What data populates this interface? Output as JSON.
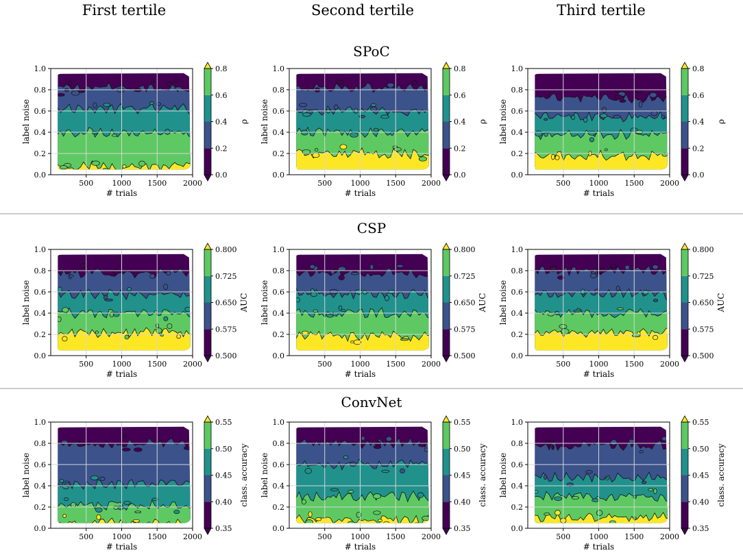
{
  "figure": {
    "column_titles": [
      "First tertile",
      "Second tertile",
      "Third tertile"
    ],
    "row_titles": [
      "SPoC",
      "CSP",
      "ConvNet"
    ]
  },
  "chart_data": [
    {
      "type": "contour",
      "model": "SPoC",
      "xlabel": "# trials",
      "ylabel": "label noise",
      "xlim": [
        0,
        2000
      ],
      "ylim": [
        0.0,
        1.0
      ],
      "xticks": [
        "500",
        "1000",
        "1500",
        "2000"
      ],
      "yticks": [
        "0.0",
        "0.2",
        "0.4",
        "0.6",
        "0.8",
        "1.0"
      ],
      "colorbar": {
        "label": "ρ",
        "range": [
          0.0,
          0.8
        ],
        "levels": [
          0.0,
          0.2,
          0.4,
          0.6,
          0.8
        ],
        "ticks": [
          "0.0",
          "0.2",
          "0.4",
          "0.6",
          "0.8"
        ],
        "extend": "both"
      },
      "panels": [
        {
          "tertile": "First tertile",
          "x_range": [
            100,
            1950
          ],
          "noise_range": [
            0.05,
            0.95
          ],
          "band_boundaries": [
            0.08,
            0.4,
            0.62,
            0.82
          ]
        },
        {
          "tertile": "Second tertile",
          "x_range": [
            100,
            1950
          ],
          "noise_range": [
            0.05,
            0.95
          ],
          "band_boundaries": [
            0.2,
            0.4,
            0.6,
            0.82
          ]
        },
        {
          "tertile": "Third tertile",
          "x_range": [
            100,
            1950
          ],
          "noise_range": [
            0.05,
            0.95
          ],
          "band_boundaries": [
            0.18,
            0.38,
            0.55,
            0.72
          ]
        }
      ]
    },
    {
      "type": "contour",
      "model": "CSP",
      "xlabel": "# trials",
      "ylabel": "label noise",
      "xlim": [
        0,
        2000
      ],
      "ylim": [
        0.0,
        1.0
      ],
      "xticks": [
        "500",
        "1000",
        "1500",
        "2000"
      ],
      "yticks": [
        "0.0",
        "0.2",
        "0.4",
        "0.6",
        "0.8",
        "1.0"
      ],
      "colorbar": {
        "label": "AUC",
        "range": [
          0.5,
          0.8
        ],
        "levels": [
          0.5,
          0.575,
          0.65,
          0.725,
          0.8
        ],
        "ticks": [
          "0.500",
          "0.575",
          "0.650",
          "0.725",
          "0.800"
        ],
        "extend": "both"
      },
      "panels": [
        {
          "tertile": "First tertile",
          "x_range": [
            100,
            1950
          ],
          "noise_range": [
            0.05,
            0.95
          ],
          "band_boundaries": [
            0.22,
            0.4,
            0.58,
            0.78
          ]
        },
        {
          "tertile": "Second tertile",
          "x_range": [
            100,
            1950
          ],
          "noise_range": [
            0.05,
            0.95
          ],
          "band_boundaries": [
            0.18,
            0.4,
            0.58,
            0.78
          ]
        },
        {
          "tertile": "Third tertile",
          "x_range": [
            100,
            1950
          ],
          "noise_range": [
            0.05,
            0.95
          ],
          "band_boundaries": [
            0.22,
            0.4,
            0.58,
            0.8
          ]
        }
      ]
    },
    {
      "type": "contour",
      "model": "ConvNet",
      "xlabel": "# trials",
      "ylabel": "label noise",
      "xlim": [
        0,
        2000
      ],
      "ylim": [
        0.0,
        1.0
      ],
      "xticks": [
        "500",
        "1000",
        "1500",
        "2000"
      ],
      "yticks": [
        "0.0",
        "0.2",
        "0.4",
        "0.6",
        "0.8",
        "1.0"
      ],
      "colorbar": {
        "label": "class. accuracy",
        "range": [
          0.35,
          0.55
        ],
        "levels": [
          0.35,
          0.4,
          0.45,
          0.5,
          0.55
        ],
        "ticks": [
          "0.35",
          "0.40",
          "0.45",
          "0.50",
          "0.55"
        ],
        "extend": "both"
      },
      "panels": [
        {
          "tertile": "First tertile",
          "x_range": [
            100,
            1950
          ],
          "noise_range": [
            0.05,
            0.95
          ],
          "band_boundaries": [
            0.05,
            0.22,
            0.42,
            0.8
          ]
        },
        {
          "tertile": "Second tertile",
          "x_range": [
            100,
            1950
          ],
          "noise_range": [
            0.05,
            0.95
          ],
          "band_boundaries": [
            0.08,
            0.3,
            0.6,
            0.8
          ]
        },
        {
          "tertile": "Third tertile",
          "x_range": [
            100,
            1950
          ],
          "noise_range": [
            0.05,
            0.95
          ],
          "band_boundaries": [
            0.1,
            0.3,
            0.48,
            0.78
          ]
        }
      ]
    }
  ],
  "colors": {
    "band_0": "#440154",
    "band_1": "#3b528b",
    "band_2": "#21918c",
    "band_3": "#5ec962",
    "band_4": "#fde725",
    "separator": "#999999",
    "grid": "#d6d6d6"
  }
}
